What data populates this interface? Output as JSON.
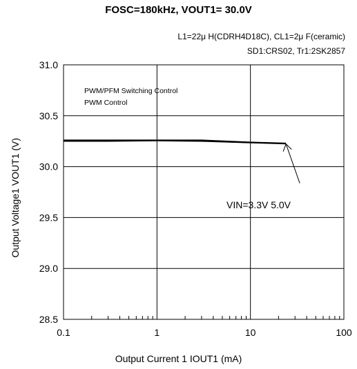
{
  "chart_data": {
    "type": "line",
    "title": "FOSC=180kHz, VOUT1= 30.0V",
    "conditions": [
      "L1=22μ H(CDRH4D18C), CL1=2μ F(ceramic)",
      "SD1:CRS02, Tr1:2SK2857"
    ],
    "xlabel": "Output Current 1 IOUT1 (mA)",
    "ylabel": "Output Voltage1  VOUT1  (V)",
    "x_scale": "log",
    "xlim": [
      0.1,
      100
    ],
    "ylim": [
      28.5,
      31.0
    ],
    "x_ticks": [
      "0.1",
      "1",
      "10",
      "100"
    ],
    "y_ticks": [
      "28.5",
      "29.0",
      "29.5",
      "30.0",
      "30.5",
      "31.0"
    ],
    "grid": true,
    "legend_text": [
      "PWM/PFM Switching Control",
      "PWM  Control"
    ],
    "annotation": {
      "text": "VIN=3.3V 5.0V",
      "arrow_to": [
        24,
        30.23
      ]
    },
    "series": [
      {
        "values": [
          [
            0.1,
            30.26
          ],
          [
            0.3,
            30.26
          ],
          [
            1,
            30.26
          ],
          [
            3,
            30.26
          ],
          [
            10,
            30.24
          ],
          [
            24,
            30.23
          ]
        ]
      },
      {
        "values": [
          [
            0.1,
            30.25
          ],
          [
            0.3,
            30.25
          ],
          [
            1,
            30.255
          ],
          [
            3,
            30.25
          ],
          [
            10,
            30.235
          ],
          [
            24,
            30.225
          ]
        ]
      }
    ],
    "colors": {
      "line": "#000000",
      "grid": "#000000"
    }
  }
}
